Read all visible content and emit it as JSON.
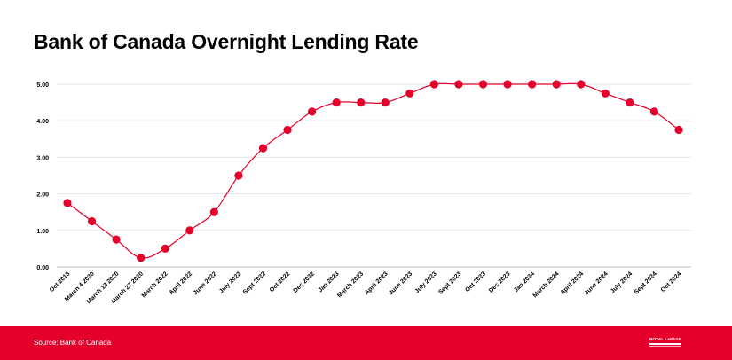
{
  "title": "Bank of Canada Overnight Lending Rate",
  "source": "Source: Bank of Canada",
  "logo": {
    "text": "ROYAL LePAGE"
  },
  "colors": {
    "accent": "#e4002b",
    "line": "#e4002b",
    "grid": "#e6e6e6"
  },
  "chart_data": {
    "type": "line",
    "title": "Bank of Canada Overnight Lending Rate",
    "xlabel": "",
    "ylabel": "",
    "ylim": [
      0,
      5
    ],
    "yticks": [
      "0.00",
      "1.00",
      "2.00",
      "3.00",
      "4.00",
      "5.00"
    ],
    "grid": true,
    "categories": [
      "Oct 2018",
      "March 4 2020",
      "March 13 2020",
      "March 27 2020",
      "March 2022",
      "April 2022",
      "June 2022",
      "July 2022",
      "Sept 2022",
      "Oct 2022",
      "Dec 2022",
      "Jan 2023",
      "March 2023",
      "April 2023",
      "June 2023",
      "July 2023",
      "Sept 2023",
      "Oct 2023",
      "Dec 2023",
      "Jan 2024",
      "March 2024",
      "April 2024",
      "June 2024",
      "July 2024",
      "Sept 2024",
      "Oct 2024"
    ],
    "series": [
      {
        "values": [
          1.75,
          1.25,
          0.75,
          0.25,
          0.5,
          1.0,
          1.5,
          2.5,
          3.25,
          3.75,
          4.25,
          4.5,
          4.5,
          4.5,
          4.75,
          5.0,
          5.0,
          5.0,
          5.0,
          5.0,
          5.0,
          5.0,
          4.75,
          4.5,
          4.25,
          3.75
        ]
      }
    ]
  }
}
